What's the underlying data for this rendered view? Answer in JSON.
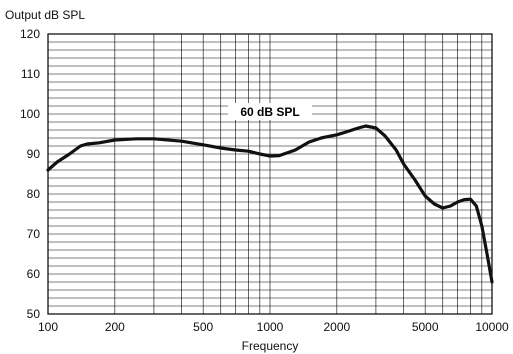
{
  "chart_data": {
    "type": "line",
    "title": "",
    "ylabel": "Output dB SPL",
    "xlabel": "Frequency",
    "x_scale": "log",
    "xlim": [
      100,
      10000
    ],
    "ylim": [
      50,
      120
    ],
    "x_ticks": [
      100,
      200,
      500,
      1000,
      2000,
      5000,
      10000
    ],
    "y_ticks": [
      50,
      60,
      70,
      80,
      90,
      100,
      110,
      120
    ],
    "grid": true,
    "line_color": "#111111",
    "series": [
      {
        "label": "60 dB SPL",
        "x": [
          100,
          110,
          125,
          140,
          150,
          170,
          200,
          250,
          300,
          400,
          500,
          600,
          700,
          800,
          900,
          1000,
          1100,
          1300,
          1500,
          1700,
          1800,
          2000,
          2200,
          2500,
          2700,
          3000,
          3300,
          3700,
          4000,
          4500,
          5000,
          5500,
          6000,
          6500,
          7000,
          7500,
          8000,
          8500,
          9000,
          9500,
          10000
        ],
        "y": [
          86,
          88,
          90,
          92,
          92.5,
          92.8,
          93.5,
          93.8,
          93.8,
          93.2,
          92.3,
          91.5,
          91,
          90.7,
          90,
          89.5,
          89.6,
          91,
          93,
          94,
          94.3,
          94.8,
          95.5,
          96.5,
          97,
          96.5,
          94.5,
          91,
          87.5,
          83.5,
          79.5,
          77.5,
          76.5,
          77,
          78,
          78.6,
          78.7,
          77,
          72,
          65,
          58
        ]
      }
    ],
    "annotations": [
      {
        "text": "60 dB SPL",
        "x": 1000,
        "y": 100.5
      }
    ]
  }
}
